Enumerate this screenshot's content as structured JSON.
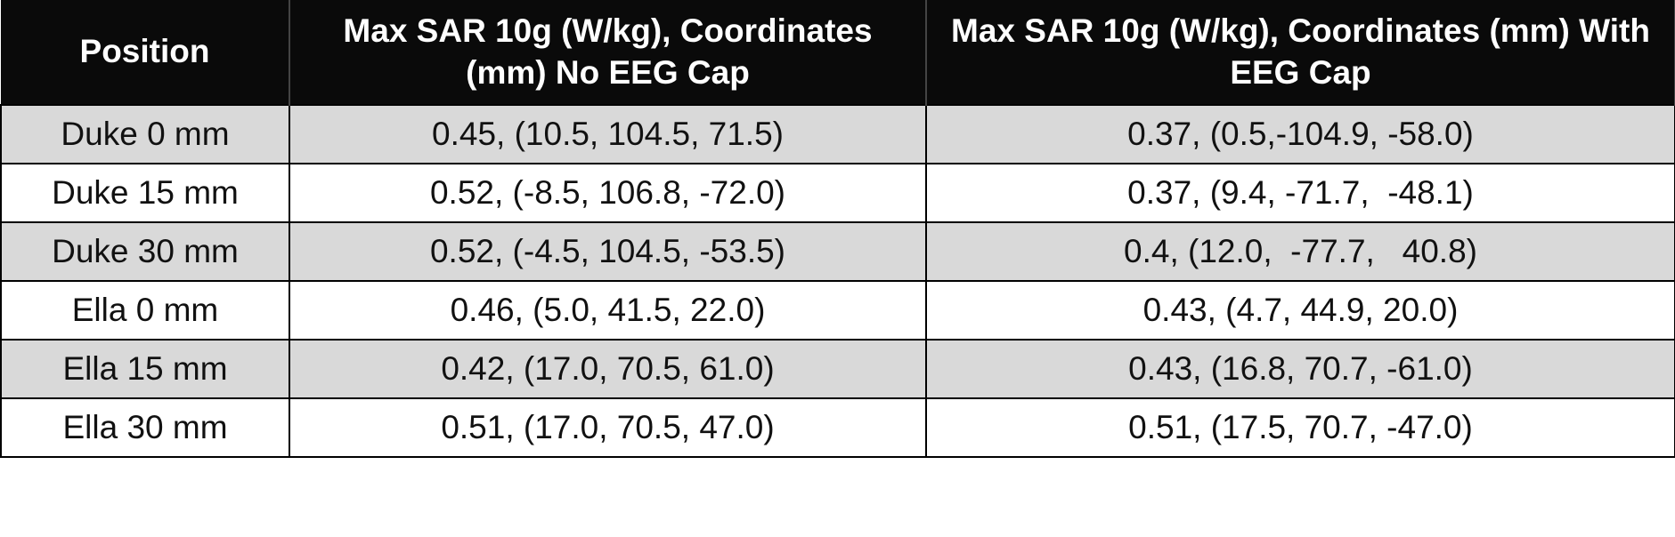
{
  "table": {
    "header": [
      "Position",
      "Max SAR 10g (W/kg), Coordinates (mm) No EEG Cap",
      "Max SAR 10g (W/kg), Coordinates (mm) With EEG Cap"
    ],
    "rows": [
      [
        "Duke 0 mm",
        "0.45, (10.5, 104.5, 71.5)",
        "0.37, (0.5,-104.9, -58.0)"
      ],
      [
        "Duke 15 mm",
        "0.52, (-8.5, 106.8, -72.0)",
        "0.37, (9.4, -71.7,  -48.1)"
      ],
      [
        "Duke 30 mm",
        "0.52, (-4.5, 104.5, -53.5)",
        "0.4, (12.0,  -77.7,   40.8)"
      ],
      [
        "Ella 0 mm",
        "0.46, (5.0, 41.5, 22.0)",
        "0.43, (4.7, 44.9, 20.0)"
      ],
      [
        "Ella 15 mm",
        "0.42, (17.0, 70.5, 61.0)",
        "0.43, (16.8, 70.7, -61.0)"
      ],
      [
        "Ella 30 mm",
        "0.51, (17.0, 70.5, 47.0)",
        "0.51, (17.5, 70.7, -47.0)"
      ]
    ]
  }
}
